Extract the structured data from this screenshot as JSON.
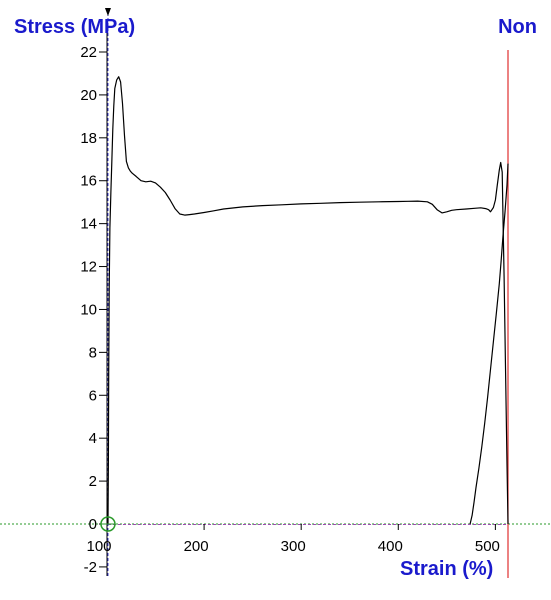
{
  "chart_data": {
    "type": "line",
    "title": "",
    "ylabel": "Stress (MPa)",
    "xlabel": "Strain (%)",
    "mode_label": "Non",
    "xlim": [
      100,
      515
    ],
    "ylim": [
      -2.5,
      23.2
    ],
    "x_ticks": [
      100,
      200,
      300,
      400,
      500
    ],
    "y_ticks": [
      -2,
      0,
      2,
      4,
      6,
      8,
      10,
      12,
      14,
      16,
      18,
      20,
      22
    ],
    "grid": false,
    "reference_lines": {
      "zero_line_color": "#2a9a2a",
      "start_marker_x": 101,
      "end_marker_x": 513,
      "end_marker_color": "#e03030",
      "start_marker_color": "#3a3acc"
    },
    "series": [
      {
        "color": "#000000",
        "x": [
          101,
          101.4,
          101.8,
          102.3,
          103,
          104,
          105,
          106,
          107,
          108,
          110,
          112,
          114,
          116,
          118,
          120,
          122,
          124,
          126,
          130,
          135,
          140,
          145,
          150,
          155,
          160,
          165,
          170,
          175,
          180,
          185,
          190,
          200,
          210,
          220,
          240,
          260,
          280,
          300,
          320,
          340,
          360,
          380,
          400,
          410,
          420,
          430,
          435,
          440,
          445,
          450,
          455,
          460,
          470,
          480,
          485,
          490,
          493,
          495,
          498,
          500,
          502,
          504,
          505.5,
          507,
          508,
          509,
          510,
          511,
          512,
          513
        ],
        "y": [
          0,
          3,
          7,
          11,
          13.8,
          15.5,
          17,
          18.4,
          19.5,
          20.3,
          20.7,
          20.85,
          20.6,
          19.6,
          18.1,
          16.9,
          16.6,
          16.45,
          16.35,
          16.2,
          16.0,
          15.95,
          15.98,
          15.9,
          15.7,
          15.45,
          15.1,
          14.7,
          14.45,
          14.4,
          14.42,
          14.45,
          14.52,
          14.6,
          14.68,
          14.78,
          14.84,
          14.88,
          14.92,
          14.95,
          14.98,
          15.0,
          15.02,
          15.03,
          15.04,
          15.05,
          15.02,
          14.9,
          14.65,
          14.5,
          14.55,
          14.62,
          14.65,
          14.68,
          14.72,
          14.74,
          14.7,
          14.65,
          14.55,
          14.75,
          15.1,
          15.8,
          16.5,
          16.85,
          16.4,
          14.0,
          11.5,
          8.5,
          5.5,
          2.8,
          0.0
        ]
      },
      {
        "color": "#000000",
        "x": [
          474,
          476,
          478,
          480,
          483,
          486,
          489,
          492,
          495,
          498,
          501,
          504,
          506,
          508,
          510,
          512,
          513
        ],
        "y": [
          0,
          0.4,
          1.0,
          1.7,
          2.6,
          3.6,
          4.7,
          5.9,
          7.2,
          8.5,
          9.8,
          11.2,
          12.3,
          13.5,
          14.6,
          15.8,
          16.8
        ]
      }
    ]
  }
}
